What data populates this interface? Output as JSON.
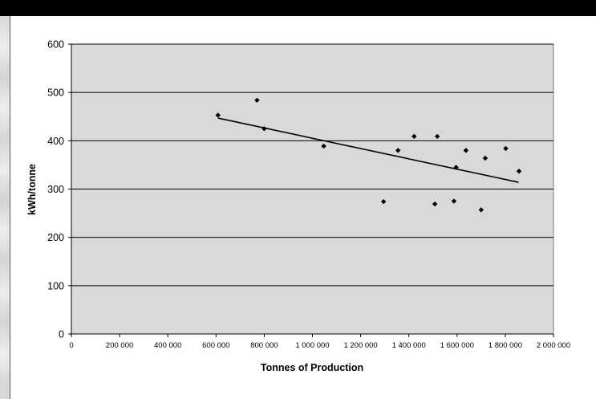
{
  "chart_data": {
    "type": "scatter",
    "title": "",
    "xlabel": "Tonnes of Production",
    "ylabel": "kWh/tonne",
    "xlim": [
      0,
      2000000
    ],
    "ylim": [
      0,
      600
    ],
    "x_ticks": [
      0,
      200000,
      400000,
      600000,
      800000,
      1000000,
      1200000,
      1400000,
      1600000,
      1800000,
      2000000
    ],
    "x_tick_labels": [
      "0",
      "200 000",
      "400 000",
      "600 000",
      "800 000",
      "1 000 000",
      "1 200 000",
      "1 400 000",
      "1 600 000",
      "1 800 000",
      "2 000 000"
    ],
    "y_ticks": [
      0,
      100,
      200,
      300,
      400,
      500,
      600
    ],
    "y_tick_labels": [
      "0",
      "100",
      "200",
      "300",
      "400",
      "500",
      "600"
    ],
    "grid": "horizontal",
    "legend": "none",
    "plot_background": "#d9d9d9",
    "marker_color": "#000000",
    "points": [
      {
        "x": 608000,
        "y": 453
      },
      {
        "x": 770000,
        "y": 484
      },
      {
        "x": 800000,
        "y": 425
      },
      {
        "x": 1047000,
        "y": 389
      },
      {
        "x": 1295000,
        "y": 274
      },
      {
        "x": 1355000,
        "y": 380
      },
      {
        "x": 1422000,
        "y": 409
      },
      {
        "x": 1508000,
        "y": 269
      },
      {
        "x": 1518000,
        "y": 409
      },
      {
        "x": 1587000,
        "y": 275
      },
      {
        "x": 1596000,
        "y": 345
      },
      {
        "x": 1637000,
        "y": 380
      },
      {
        "x": 1700000,
        "y": 257
      },
      {
        "x": 1717000,
        "y": 364
      },
      {
        "x": 1802000,
        "y": 384
      },
      {
        "x": 1857000,
        "y": 337
      }
    ],
    "trendline": {
      "x": [
        608000,
        1855000
      ],
      "y": [
        447,
        314
      ]
    }
  }
}
